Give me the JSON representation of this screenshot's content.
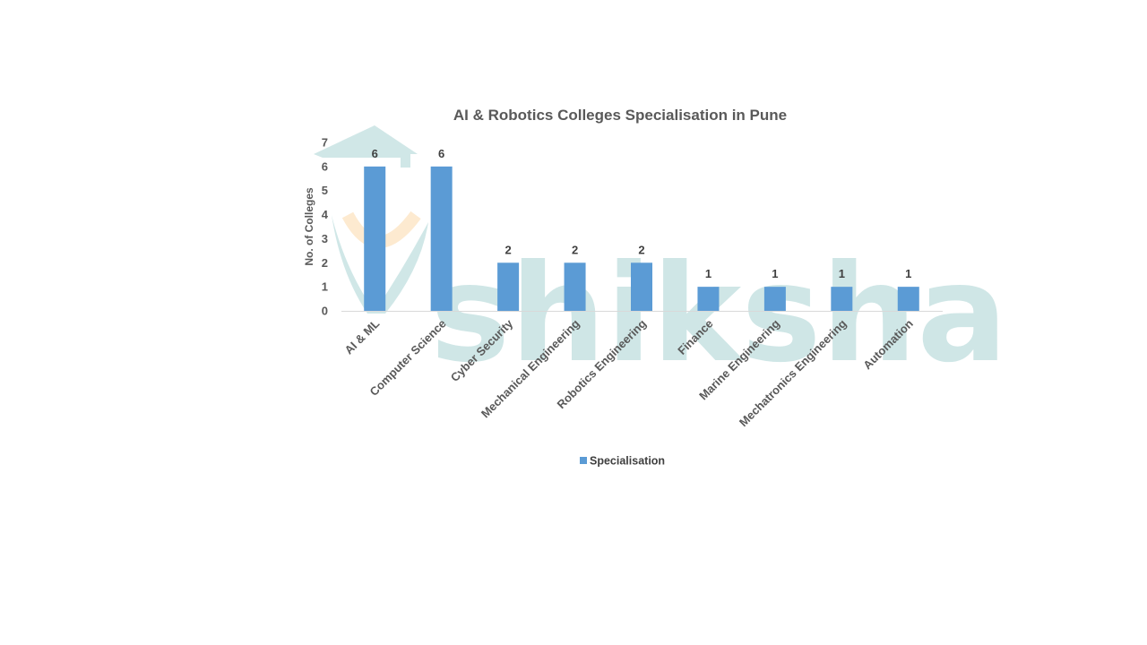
{
  "chart_data": {
    "type": "bar",
    "title": "AI & Robotics  Colleges Specialisation  in Pune",
    "ylabel": "No. of Colleges",
    "xlabel": "",
    "ylim": [
      0,
      7
    ],
    "yticks": [
      "0",
      "1",
      "2",
      "3",
      "4",
      "5",
      "6",
      "7"
    ],
    "grid": false,
    "legend_position": "bottom",
    "categories": [
      "AI & ML",
      "Computer Science",
      "Cyber Security",
      "Mechanical Engineering",
      "Robotics Engineering",
      "Finance",
      "Marine Engineering",
      "Mechatronics Engineering",
      "Automation"
    ],
    "series": [
      {
        "name": "Specialisation",
        "values": [
          6,
          6,
          2,
          2,
          2,
          1,
          1,
          1,
          1
        ],
        "color": "#5b9bd5"
      }
    ]
  },
  "watermark": {
    "text": "shiksha",
    "color": "#a9d3d3"
  }
}
